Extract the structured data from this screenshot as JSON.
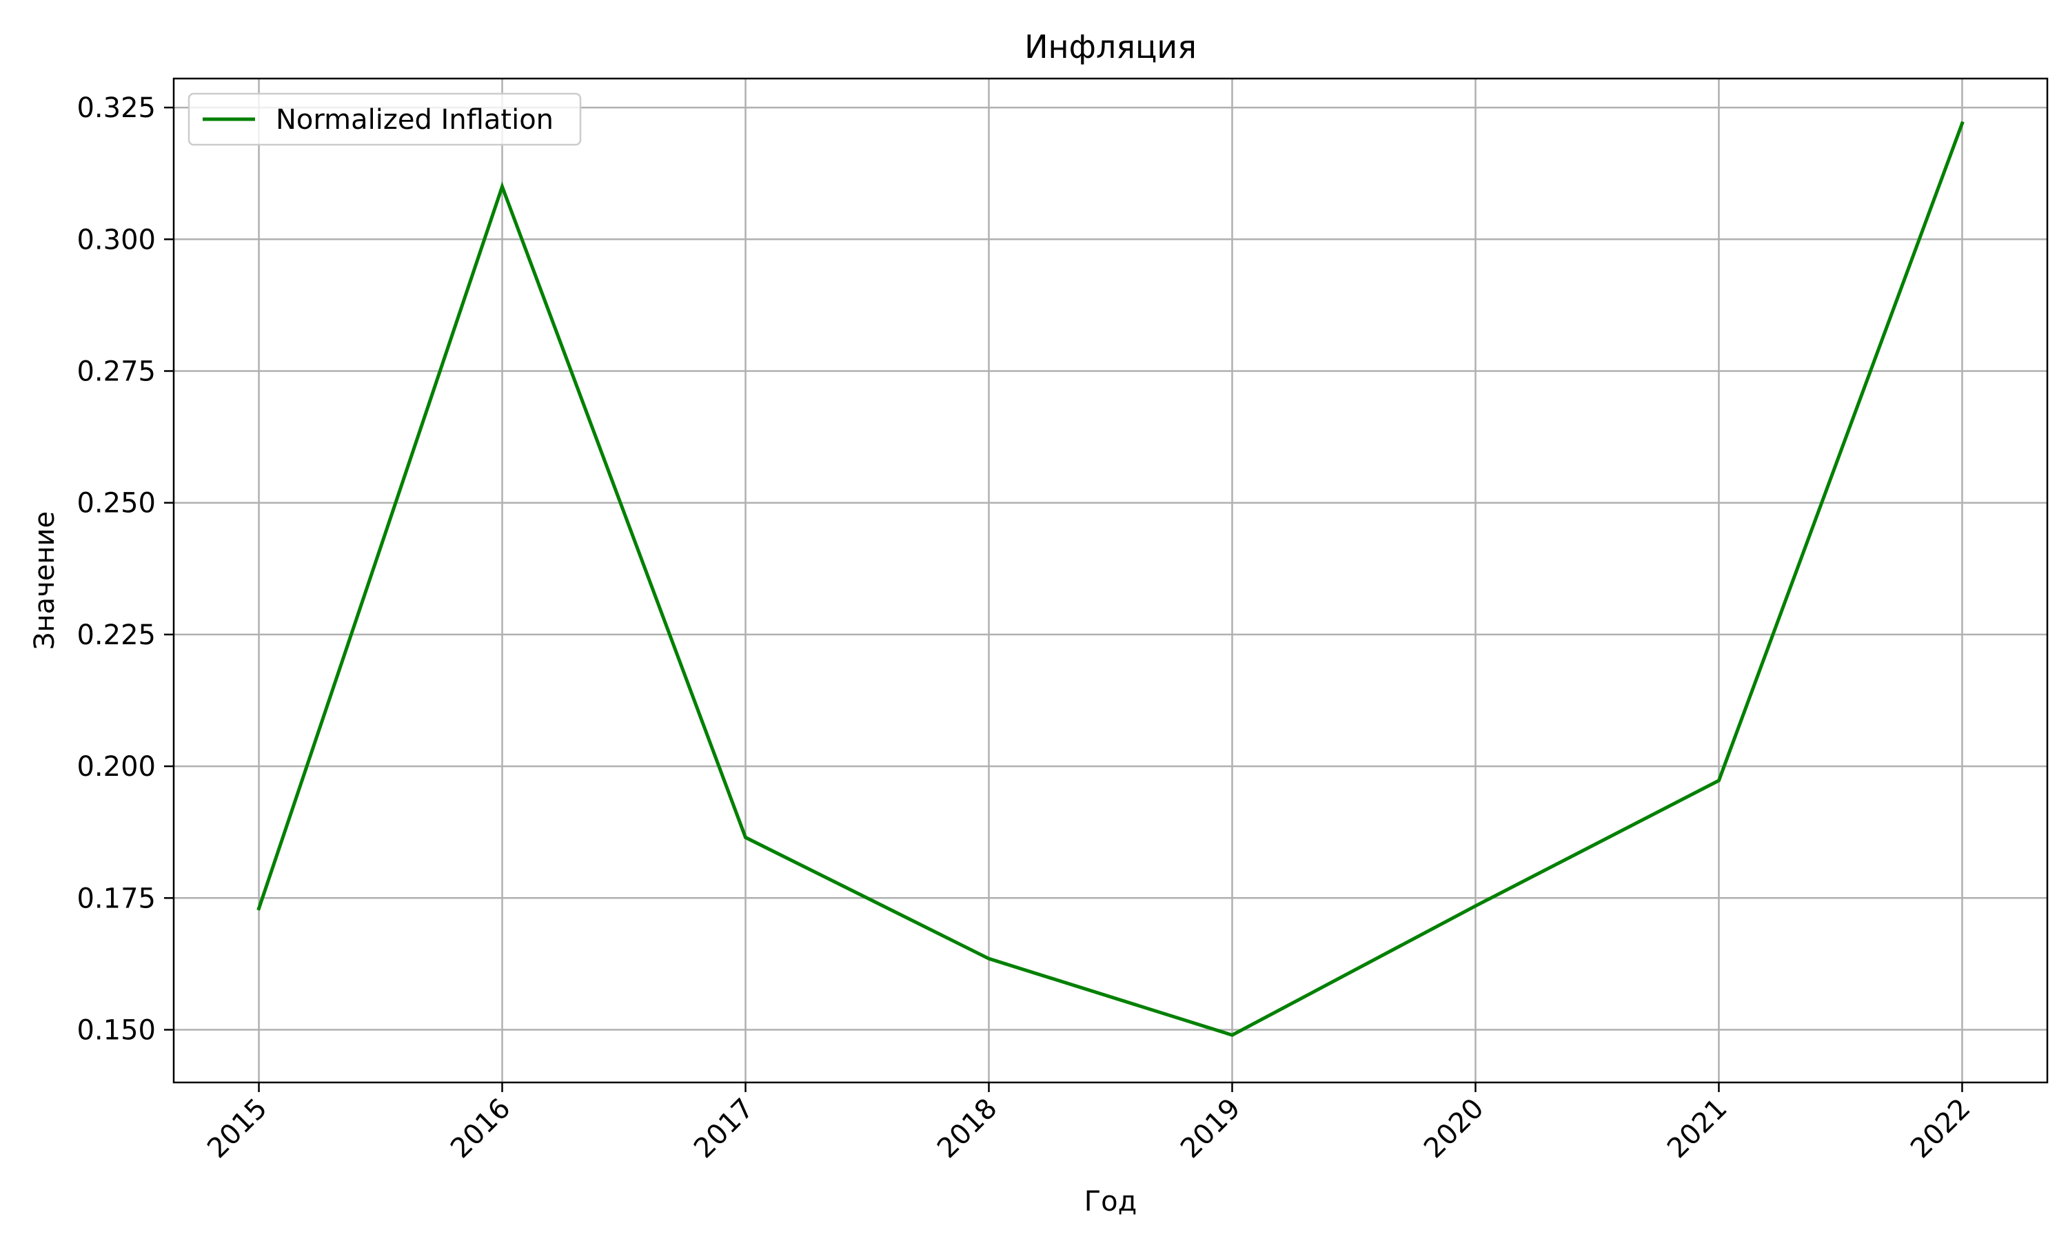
{
  "chart_data": {
    "type": "line",
    "title": "Инфляция",
    "xlabel": "Год",
    "ylabel": "Значение",
    "x": [
      2015,
      2016,
      2017,
      2018,
      2019,
      2020,
      2021,
      2022
    ],
    "x_tick_labels": [
      "2015",
      "2016",
      "2017",
      "2018",
      "2019",
      "2020",
      "2021",
      "2022"
    ],
    "x_tick_rotation_deg": 45,
    "y_ticks": [
      0.15,
      0.175,
      0.2,
      0.225,
      0.25,
      0.275,
      0.3,
      0.325
    ],
    "y_tick_labels": [
      "0.150",
      "0.175",
      "0.200",
      "0.225",
      "0.250",
      "0.275",
      "0.300",
      "0.325"
    ],
    "xlim": [
      2014.65,
      2022.35
    ],
    "ylim": [
      0.14,
      0.3305
    ],
    "grid": true,
    "legend_position": "top-left",
    "series": [
      {
        "name": "Normalized Inflation",
        "color": "#008000",
        "values": [
          0.173,
          0.31,
          0.1865,
          0.1635,
          0.149,
          0.1735,
          0.1973,
          0.322
        ]
      }
    ]
  }
}
